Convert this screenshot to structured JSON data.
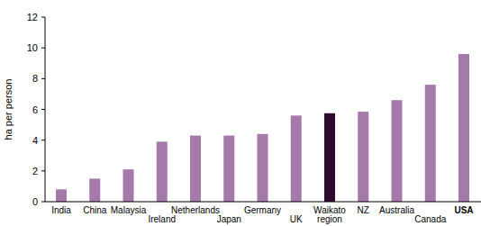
{
  "chart_data": {
    "type": "bar",
    "y_label": "ha per person",
    "categories": [
      "India",
      "China",
      "Malaysia",
      "Ireland",
      "Netherlands",
      "Japan",
      "Germany",
      "UK",
      "Waikato region",
      "NZ",
      "Australia",
      "Canada",
      "USA"
    ],
    "values": [
      0.8,
      1.5,
      2.1,
      3.9,
      4.3,
      4.3,
      4.4,
      5.6,
      5.75,
      5.85,
      6.6,
      7.6,
      9.6
    ],
    "colors": [
      "#a57aaa",
      "#a57aaa",
      "#a57aaa",
      "#a57aaa",
      "#a57aaa",
      "#a57aaa",
      "#a57aaa",
      "#a57aaa",
      "#2d0b2f",
      "#a57aaa",
      "#a57aaa",
      "#a57aaa",
      "#a57aaa"
    ],
    "ylim": [
      0,
      12
    ],
    "yticks": [
      0,
      2,
      4,
      6,
      8,
      10,
      12
    ],
    "grid": false
  }
}
